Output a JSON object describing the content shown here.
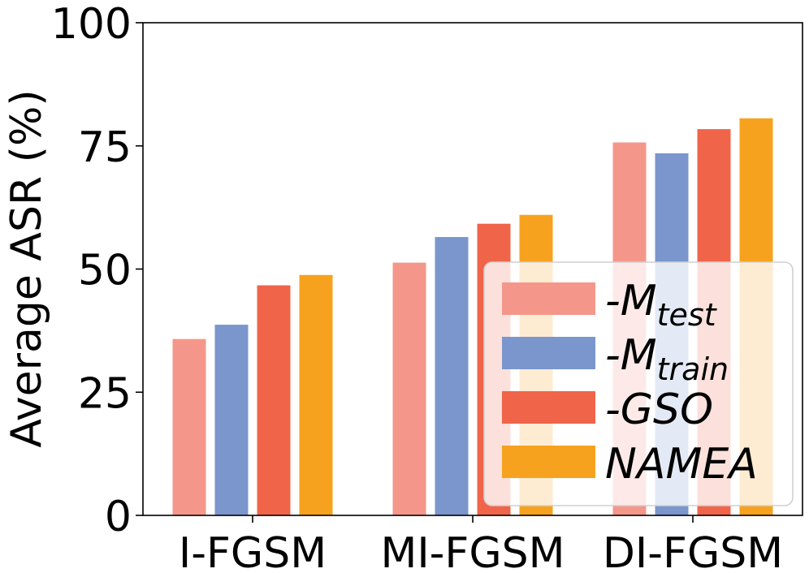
{
  "chart_data": {
    "type": "bar",
    "title": "",
    "xlabel": "",
    "ylabel": "Average ASR (%)",
    "ylim": [
      0,
      100
    ],
    "yticks": [
      "0",
      "25",
      "50",
      "75",
      "100"
    ],
    "categories": [
      "I-FGSM",
      "MI-FGSM",
      "DI-FGSM"
    ],
    "series": [
      {
        "name": "-M_test",
        "legend_main": "-M",
        "legend_sub": "test",
        "color": "#f4978a",
        "values": [
          35.8,
          51.3,
          75.7
        ]
      },
      {
        "name": "-M_train",
        "legend_main": "-M",
        "legend_sub": "train",
        "color": "#7a96cc",
        "values": [
          38.7,
          56.5,
          73.5
        ]
      },
      {
        "name": "-GSO",
        "legend_main": "-GSO",
        "legend_sub": "",
        "color": "#f0644a",
        "values": [
          46.7,
          59.2,
          78.4
        ]
      },
      {
        "name": "NAMEA",
        "legend_main": "NAMEA",
        "legend_sub": "",
        "color": "#f7a21e",
        "values": [
          48.8,
          61.0,
          80.6
        ]
      }
    ],
    "legend_position": "lower-right",
    "grid": false
  }
}
